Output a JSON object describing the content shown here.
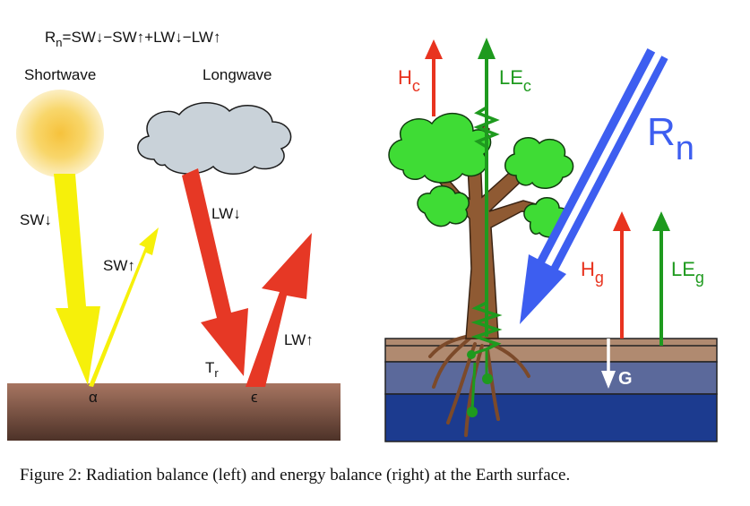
{
  "left": {
    "equation": {
      "base": "R",
      "sub": "n",
      "rest": "=SW↓−SW↑+LW↓−LW↑"
    },
    "shortwave_label": "Shortwave",
    "longwave_label": "Longwave",
    "sw_down_label": "SW↓",
    "sw_up_label": "SW↑",
    "lw_down_label": "LW↓",
    "lw_up_label": "LW↑",
    "tr_label": {
      "base": "T",
      "sub": "r"
    },
    "albedo_symbol": "α",
    "emissivity_symbol": "ϵ"
  },
  "right": {
    "rn_label": {
      "base": "R",
      "sub": "n"
    },
    "hc_label": {
      "base": "H",
      "sub": "c"
    },
    "lec_label": {
      "base": "LE",
      "sub": "c"
    },
    "hg_label": {
      "base": "H",
      "sub": "g"
    },
    "leg_label": {
      "base": "LE",
      "sub": "g"
    },
    "g_label": "G"
  },
  "caption": "Figure 2: Radiation balance (left) and energy balance (right) at the Earth surface.",
  "colors": {
    "sun_core": "#f7c947",
    "sun_edge": "#fbe7a8",
    "cloud": "#c9d3da",
    "sw_arrow": "#f5ef0a",
    "lw_arrow": "#e23a26",
    "ground": "#9c6a55",
    "sensible_heat": "#e8331f",
    "latent_heat": "#1e9a1e",
    "net_radiation": "#3d5ef0",
    "ground_heat": "#ffffff",
    "soil_top": "#b08a70",
    "soil_mid": "#5c6a9a",
    "soil_deep": "#1c3c8f",
    "tree_trunk": "#8f5a33",
    "tree_leaves": "#3fdc35"
  }
}
